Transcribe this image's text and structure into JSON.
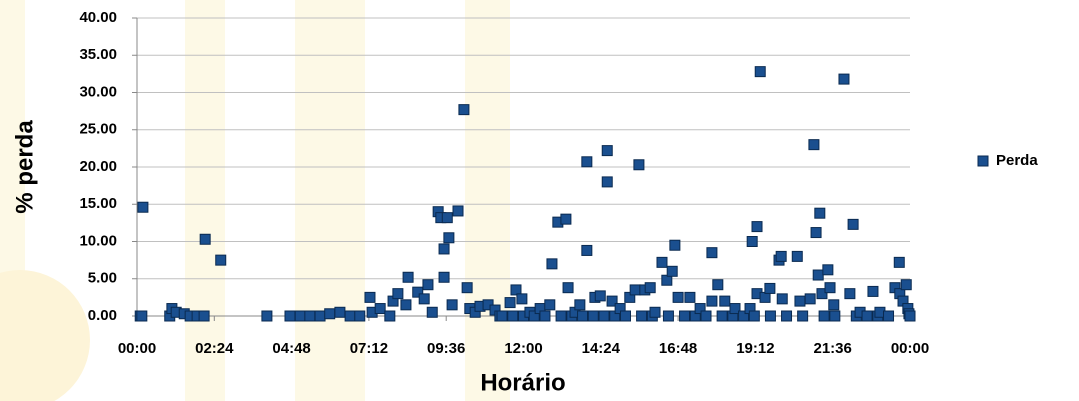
{
  "chart_data": {
    "type": "scatter",
    "x_label": "Horário",
    "y_label": "% perda",
    "x": [
      6,
      9,
      11,
      61,
      65,
      73,
      88,
      99,
      112,
      125,
      127,
      156,
      242,
      285,
      304,
      322,
      341,
      359,
      378,
      397,
      415,
      434,
      438,
      453,
      471,
      477,
      486,
      501,
      505,
      523,
      535,
      542,
      550,
      561,
      566,
      572,
      572,
      578,
      581,
      587,
      598,
      609,
      615,
      620,
      630,
      639,
      654,
      667,
      676,
      680,
      695,
      700,
      706,
      717,
      720,
      732,
      740,
      751,
      760,
      769,
      773,
      784,
      790,
      799,
      803,
      810,
      816,
      825,
      830,
      838,
      838,
      850,
      853,
      863,
      870,
      876,
      876,
      885,
      890,
      900,
      910,
      918,
      928,
      935,
      940,
      946,
      956,
      960,
      965,
      978,
      987,
      990,
      997,
      1002,
      1008,
      1020,
      1030,
      1040,
      1049,
      1060,
      1071,
      1071,
      1082,
      1090,
      1095,
      1110,
      1114,
      1130,
      1142,
      1146,
      1150,
      1155,
      1155,
      1161,
      1170,
      1179,
      1180,
      1196,
      1200,
      1202,
      1210,
      1230,
      1235,
      1240,
      1254,
      1261,
      1265,
      1269,
      1272,
      1276,
      1280,
      1287,
      1291,
      1298,
      1300,
      1317,
      1328,
      1334,
      1340,
      1347,
      1360,
      1371,
      1380,
      1384,
      1400,
      1412,
      1420,
      1421,
      1427,
      1433,
      1436,
      1438,
      1440
    ],
    "series": [
      {
        "name": "Perda",
        "color": "#1a4f8f",
        "values": [
          0,
          0,
          14.6,
          0,
          1.0,
          0.5,
          0.3,
          0,
          0,
          0,
          10.3,
          7.5,
          0,
          0,
          0,
          0,
          0,
          0.3,
          0.5,
          0,
          0,
          2.5,
          0.5,
          1.0,
          0,
          2.0,
          3.0,
          1.5,
          5.2,
          3.2,
          2.3,
          4.2,
          0.5,
          14.0,
          13.2,
          9.0,
          5.2,
          13.2,
          10.5,
          1.5,
          14.1,
          27.7,
          3.8,
          1.0,
          0.5,
          1.3,
          1.5,
          0.8,
          0,
          0,
          1.8,
          0,
          3.5,
          2.3,
          0,
          0.5,
          0,
          1.0,
          0,
          1.5,
          7.0,
          12.6,
          0,
          13.0,
          3.8,
          0,
          0.5,
          1.5,
          0,
          8.8,
          20.7,
          0,
          2.5,
          2.7,
          0,
          22.2,
          18.0,
          2.0,
          0,
          1.0,
          0,
          2.5,
          3.5,
          20.3,
          0,
          3.5,
          3.8,
          0,
          0.5,
          7.2,
          4.8,
          0,
          6.0,
          9.5,
          2.5,
          0,
          2.5,
          0,
          1.0,
          0,
          8.5,
          2.0,
          4.2,
          0,
          2.0,
          0,
          1.0,
          0,
          1.0,
          10.0,
          0,
          12.0,
          3.0,
          32.8,
          2.5,
          3.7,
          0,
          7.5,
          8.0,
          2.3,
          0,
          8.0,
          2.0,
          0,
          2.3,
          23.0,
          11.2,
          5.5,
          13.8,
          3.0,
          0,
          6.2,
          3.8,
          1.5,
          0,
          31.8,
          3.0,
          12.3,
          0,
          0.5,
          0,
          3.3,
          0,
          0.5,
          0,
          3.8,
          7.2,
          3.0,
          2.0,
          4.2,
          1.0,
          0.3,
          0
        ]
      }
    ],
    "xlim": [
      0,
      1440
    ],
    "xticks": [
      {
        "value": 0,
        "label": "00:00"
      },
      {
        "value": 144,
        "label": "02:24"
      },
      {
        "value": 288,
        "label": "04:48"
      },
      {
        "value": 432,
        "label": "07:12"
      },
      {
        "value": 576,
        "label": "09:36"
      },
      {
        "value": 720,
        "label": "12:00"
      },
      {
        "value": 864,
        "label": "14:24"
      },
      {
        "value": 1008,
        "label": "16:48"
      },
      {
        "value": 1152,
        "label": "19:12"
      },
      {
        "value": 1296,
        "label": "21:36"
      },
      {
        "value": 1440,
        "label": "00:00"
      }
    ],
    "ylim": [
      0,
      40
    ],
    "yticks": [
      {
        "value": 0,
        "label": "0.00"
      },
      {
        "value": 5,
        "label": "5.00"
      },
      {
        "value": 10,
        "label": "10.00"
      },
      {
        "value": 15,
        "label": "15.00"
      },
      {
        "value": 20,
        "label": "20.00"
      },
      {
        "value": 25,
        "label": "25.00"
      },
      {
        "value": 30,
        "label": "30.00"
      },
      {
        "value": 35,
        "label": "35.00"
      },
      {
        "value": 40,
        "label": "40.00"
      }
    ],
    "grid": true,
    "legend": "right"
  }
}
